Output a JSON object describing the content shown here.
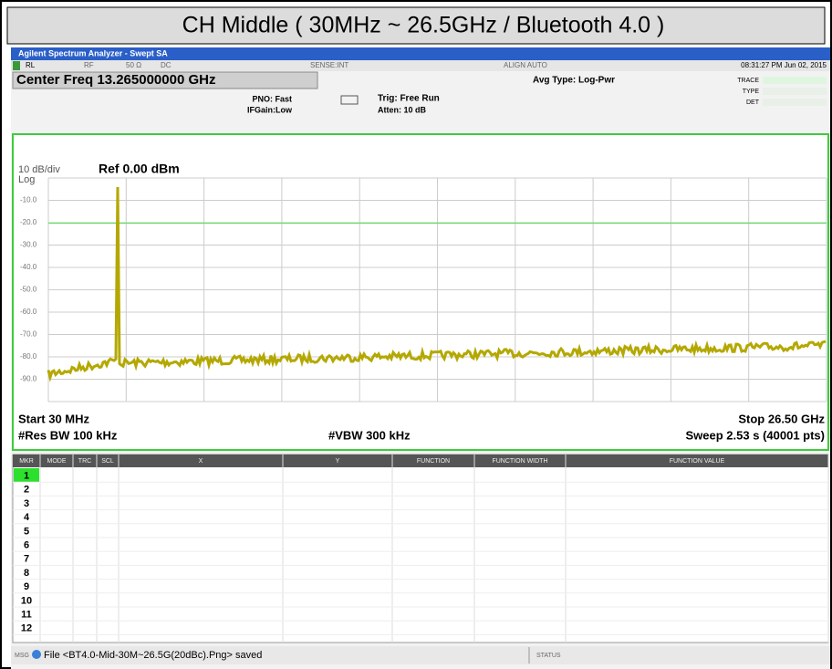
{
  "header": {
    "title": "CH Middle ( 30MHz ~ 26.5GHz / Bluetooth 4.0 )"
  },
  "window": {
    "title": "Agilent Spectrum Analyzer - Swept SA"
  },
  "status_bar": {
    "rl": "RL",
    "rf": "RF",
    "impedance": "50 Ω",
    "coupling": "DC",
    "sense": "SENSE:INT",
    "align": "ALIGN AUTO",
    "datetime": "08:31:27 PM Jun 02, 2015"
  },
  "settings": {
    "center_freq": "Center Freq 13.265000000 GHz",
    "pno": "PNO: Fast",
    "ifgain": "IFGain:Low",
    "trig": "Trig: Free Run",
    "atten": "Atten: 10 dB",
    "avg_type": "Avg Type: Log-Pwr",
    "trace_label": "TRACE",
    "type_label": "TYPE",
    "det_label": "DET"
  },
  "plot": {
    "scale": "10 dB/div",
    "log": "Log",
    "ref": "Ref 0.00 dBm",
    "y_labels": [
      "-10.0",
      "-20.0",
      "-30.0",
      "-40.0",
      "-50.0",
      "-60.0",
      "-70.0",
      "-80.0",
      "-90.0"
    ],
    "start": "Start 30 MHz",
    "stop": "Stop 26.50 GHz",
    "rbw": "#Res BW 100 kHz",
    "vbw": "#VBW 300 kHz",
    "sweep": "Sweep  2.53 s (40001 pts)"
  },
  "marker_table": {
    "columns": [
      "MKR",
      "MODE",
      "TRC",
      "SCL",
      "X",
      "Y",
      "FUNCTION",
      "FUNCTION WIDTH",
      "FUNCTION VALUE"
    ],
    "rows": [
      "1",
      "2",
      "3",
      "4",
      "5",
      "6",
      "7",
      "8",
      "9",
      "10",
      "11",
      "12"
    ]
  },
  "footer": {
    "msg": "MSG",
    "message": "File <BT4.0-Mid-30M~26.5G(20dBc).Png> saved",
    "status": "STATUS"
  }
}
